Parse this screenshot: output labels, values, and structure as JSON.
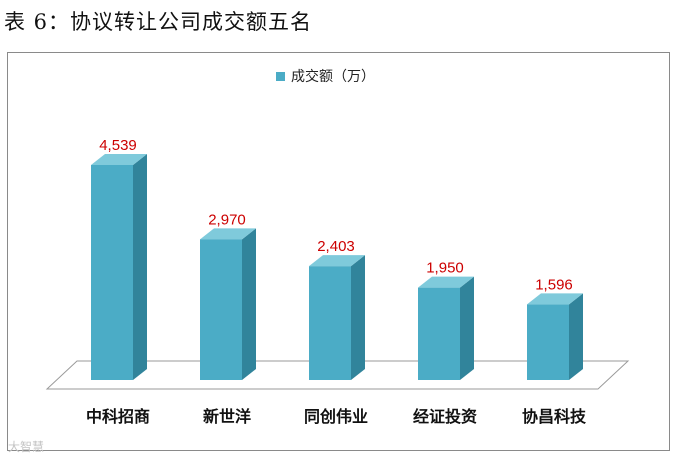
{
  "title": "表 6：协议转让公司成交额五名",
  "watermark": "大智慧",
  "chart_data": {
    "type": "bar",
    "categories": [
      "中科招商",
      "新世洋",
      "同创伟业",
      "经证投资",
      "协昌科技"
    ],
    "series": [
      {
        "name": "成交额（万）",
        "values": [
          4539,
          2970,
          2403,
          1950,
          1596
        ],
        "color": "#4bacc6"
      }
    ],
    "data_labels": [
      "4,539",
      "2,970",
      "2,403",
      "1,950",
      "1,596"
    ],
    "data_label_color": "#cc0000",
    "legend_position": "top-center",
    "grid": false,
    "ylim": [
      0,
      5000
    ],
    "bar_style": "3d"
  }
}
